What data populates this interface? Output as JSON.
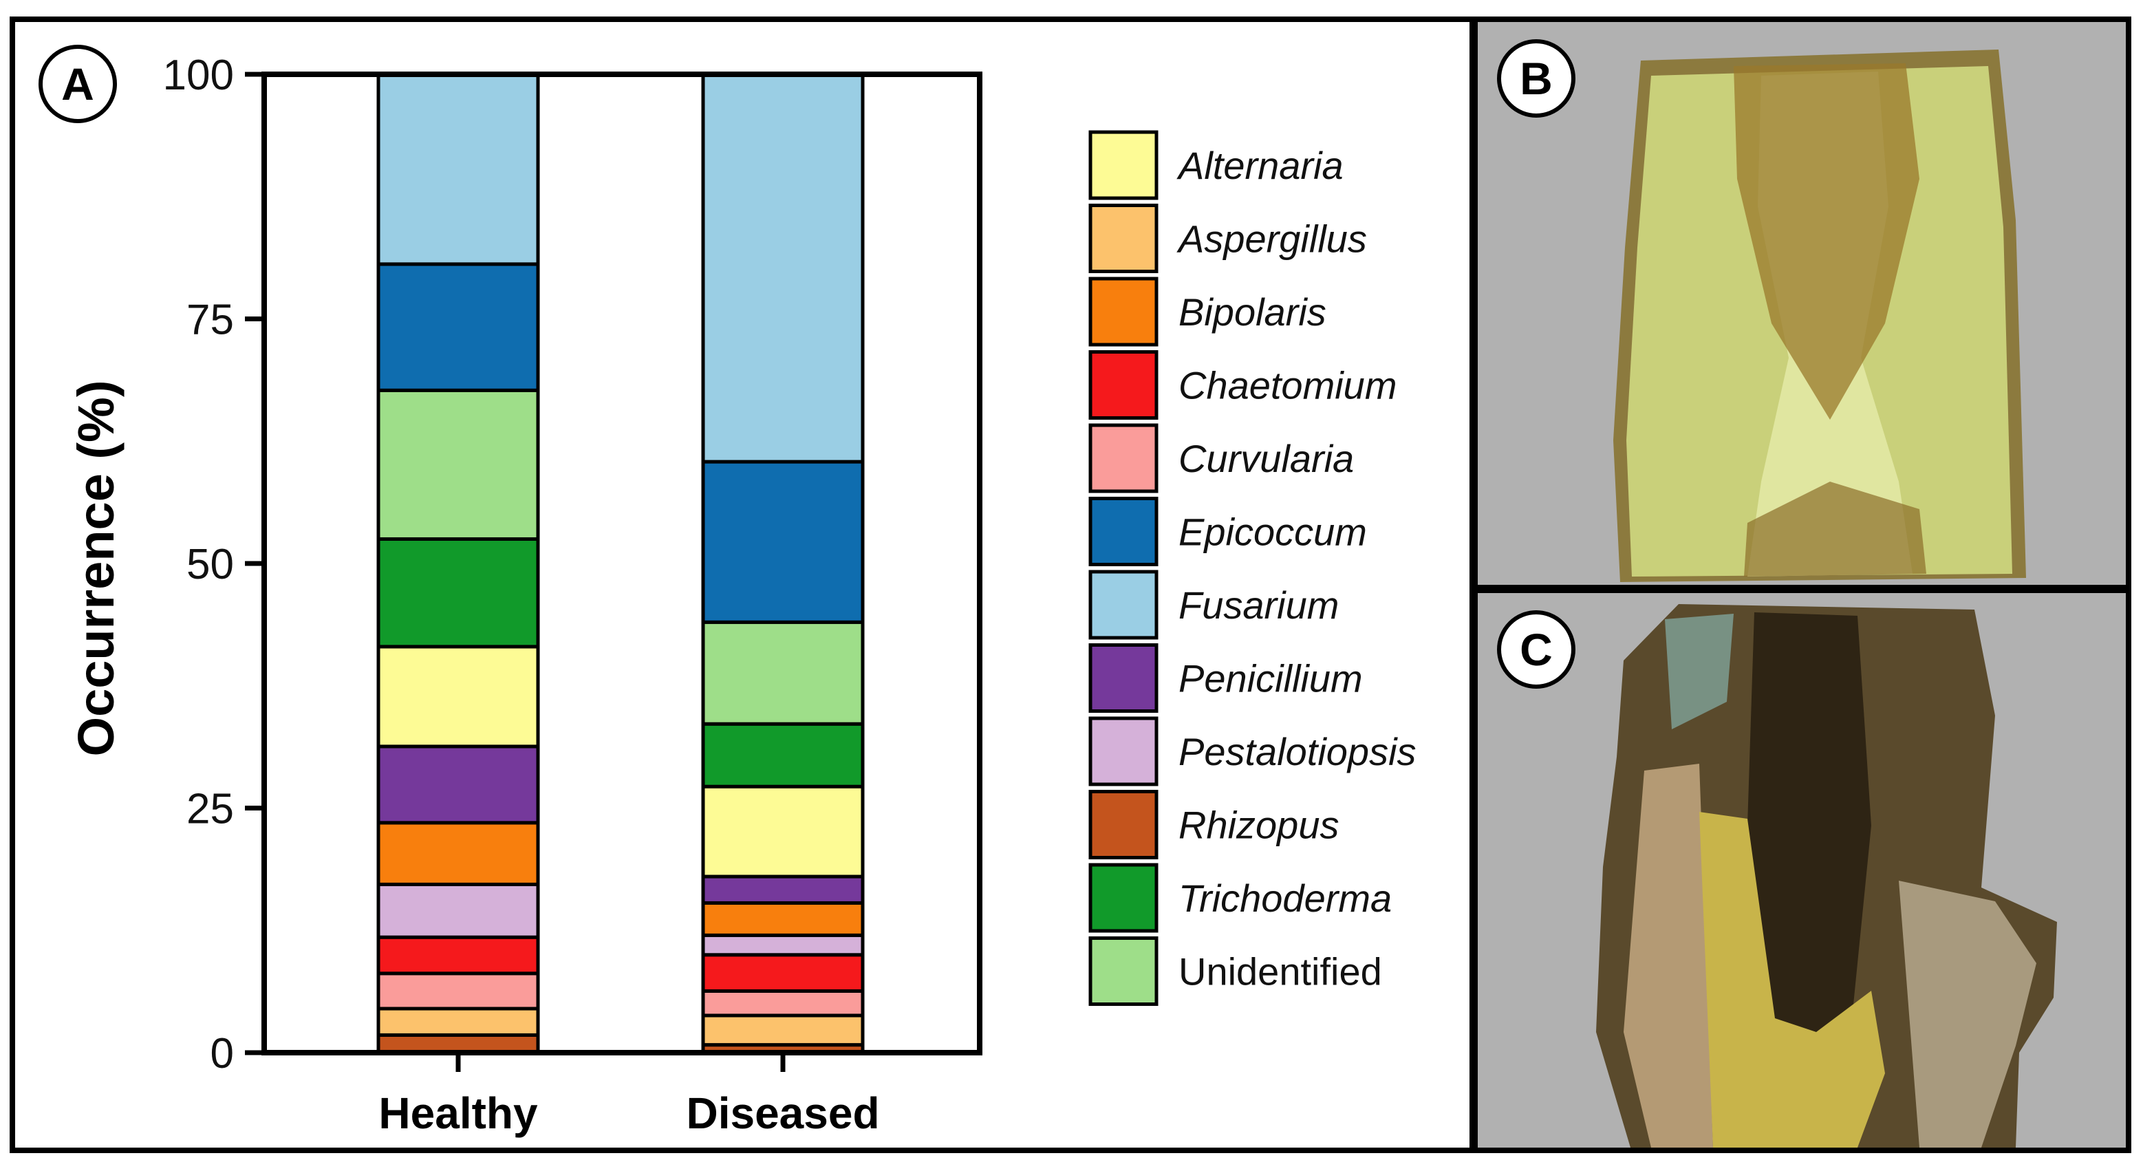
{
  "panels": {
    "a_label": "A",
    "b_label": "B",
    "c_label": "C"
  },
  "colors": {
    "Alternaria": "#FDFB95",
    "Aspergillus": "#FCC26C",
    "Bipolaris": "#F87F0D",
    "Chaetomium": "#F5191C",
    "Curvularia": "#FA9C9A",
    "Epicoccum": "#0F6DAF",
    "Fusarium": "#9ACEE4",
    "Penicillium": "#75399B",
    "Pestalotiopsis": "#D5B1D9",
    "Rhizopus": "#C4541D",
    "Trichoderma": "#119A2A",
    "Unidentified": "#9EDE89",
    "panel_background": "#B1B1B1"
  },
  "chart_data": {
    "type": "bar",
    "stacked": true,
    "categories": [
      "Healthy",
      "Diseased"
    ],
    "ylabel": "Occurrence (%)",
    "xlabel": "",
    "ylim": [
      0,
      100
    ],
    "yticks": [
      0,
      25,
      50,
      75,
      100
    ],
    "legend_position": "right",
    "series": [
      {
        "name": "Rhizopus",
        "italic": true,
        "values": [
          1.8,
          0.8
        ]
      },
      {
        "name": "Aspergillus",
        "italic": true,
        "values": [
          2.7,
          3.0
        ]
      },
      {
        "name": "Curvularia",
        "italic": true,
        "values": [
          3.6,
          2.5
        ]
      },
      {
        "name": "Chaetomium",
        "italic": true,
        "values": [
          3.7,
          3.7
        ]
      },
      {
        "name": "Pestalotiopsis",
        "italic": true,
        "values": [
          5.4,
          2.0
        ]
      },
      {
        "name": "Bipolaris",
        "italic": true,
        "values": [
          6.3,
          3.3
        ]
      },
      {
        "name": "Penicillium",
        "italic": true,
        "values": [
          7.8,
          2.7
        ]
      },
      {
        "name": "Alternaria",
        "italic": true,
        "values": [
          10.2,
          9.2
        ]
      },
      {
        "name": "Trichoderma",
        "italic": true,
        "values": [
          11.0,
          6.4
        ]
      },
      {
        "name": "Unidentified",
        "italic": false,
        "values": [
          15.2,
          10.4
        ]
      },
      {
        "name": "Epicoccum",
        "italic": true,
        "values": [
          12.9,
          16.4
        ]
      },
      {
        "name": "Fusarium",
        "italic": true,
        "values": [
          19.4,
          39.6
        ]
      }
    ],
    "legend_order": [
      "Alternaria",
      "Aspergillus",
      "Bipolaris",
      "Chaetomium",
      "Curvularia",
      "Epicoccum",
      "Fusarium",
      "Penicillium",
      "Pestalotiopsis",
      "Rhizopus",
      "Trichoderma",
      "Unidentified"
    ]
  }
}
